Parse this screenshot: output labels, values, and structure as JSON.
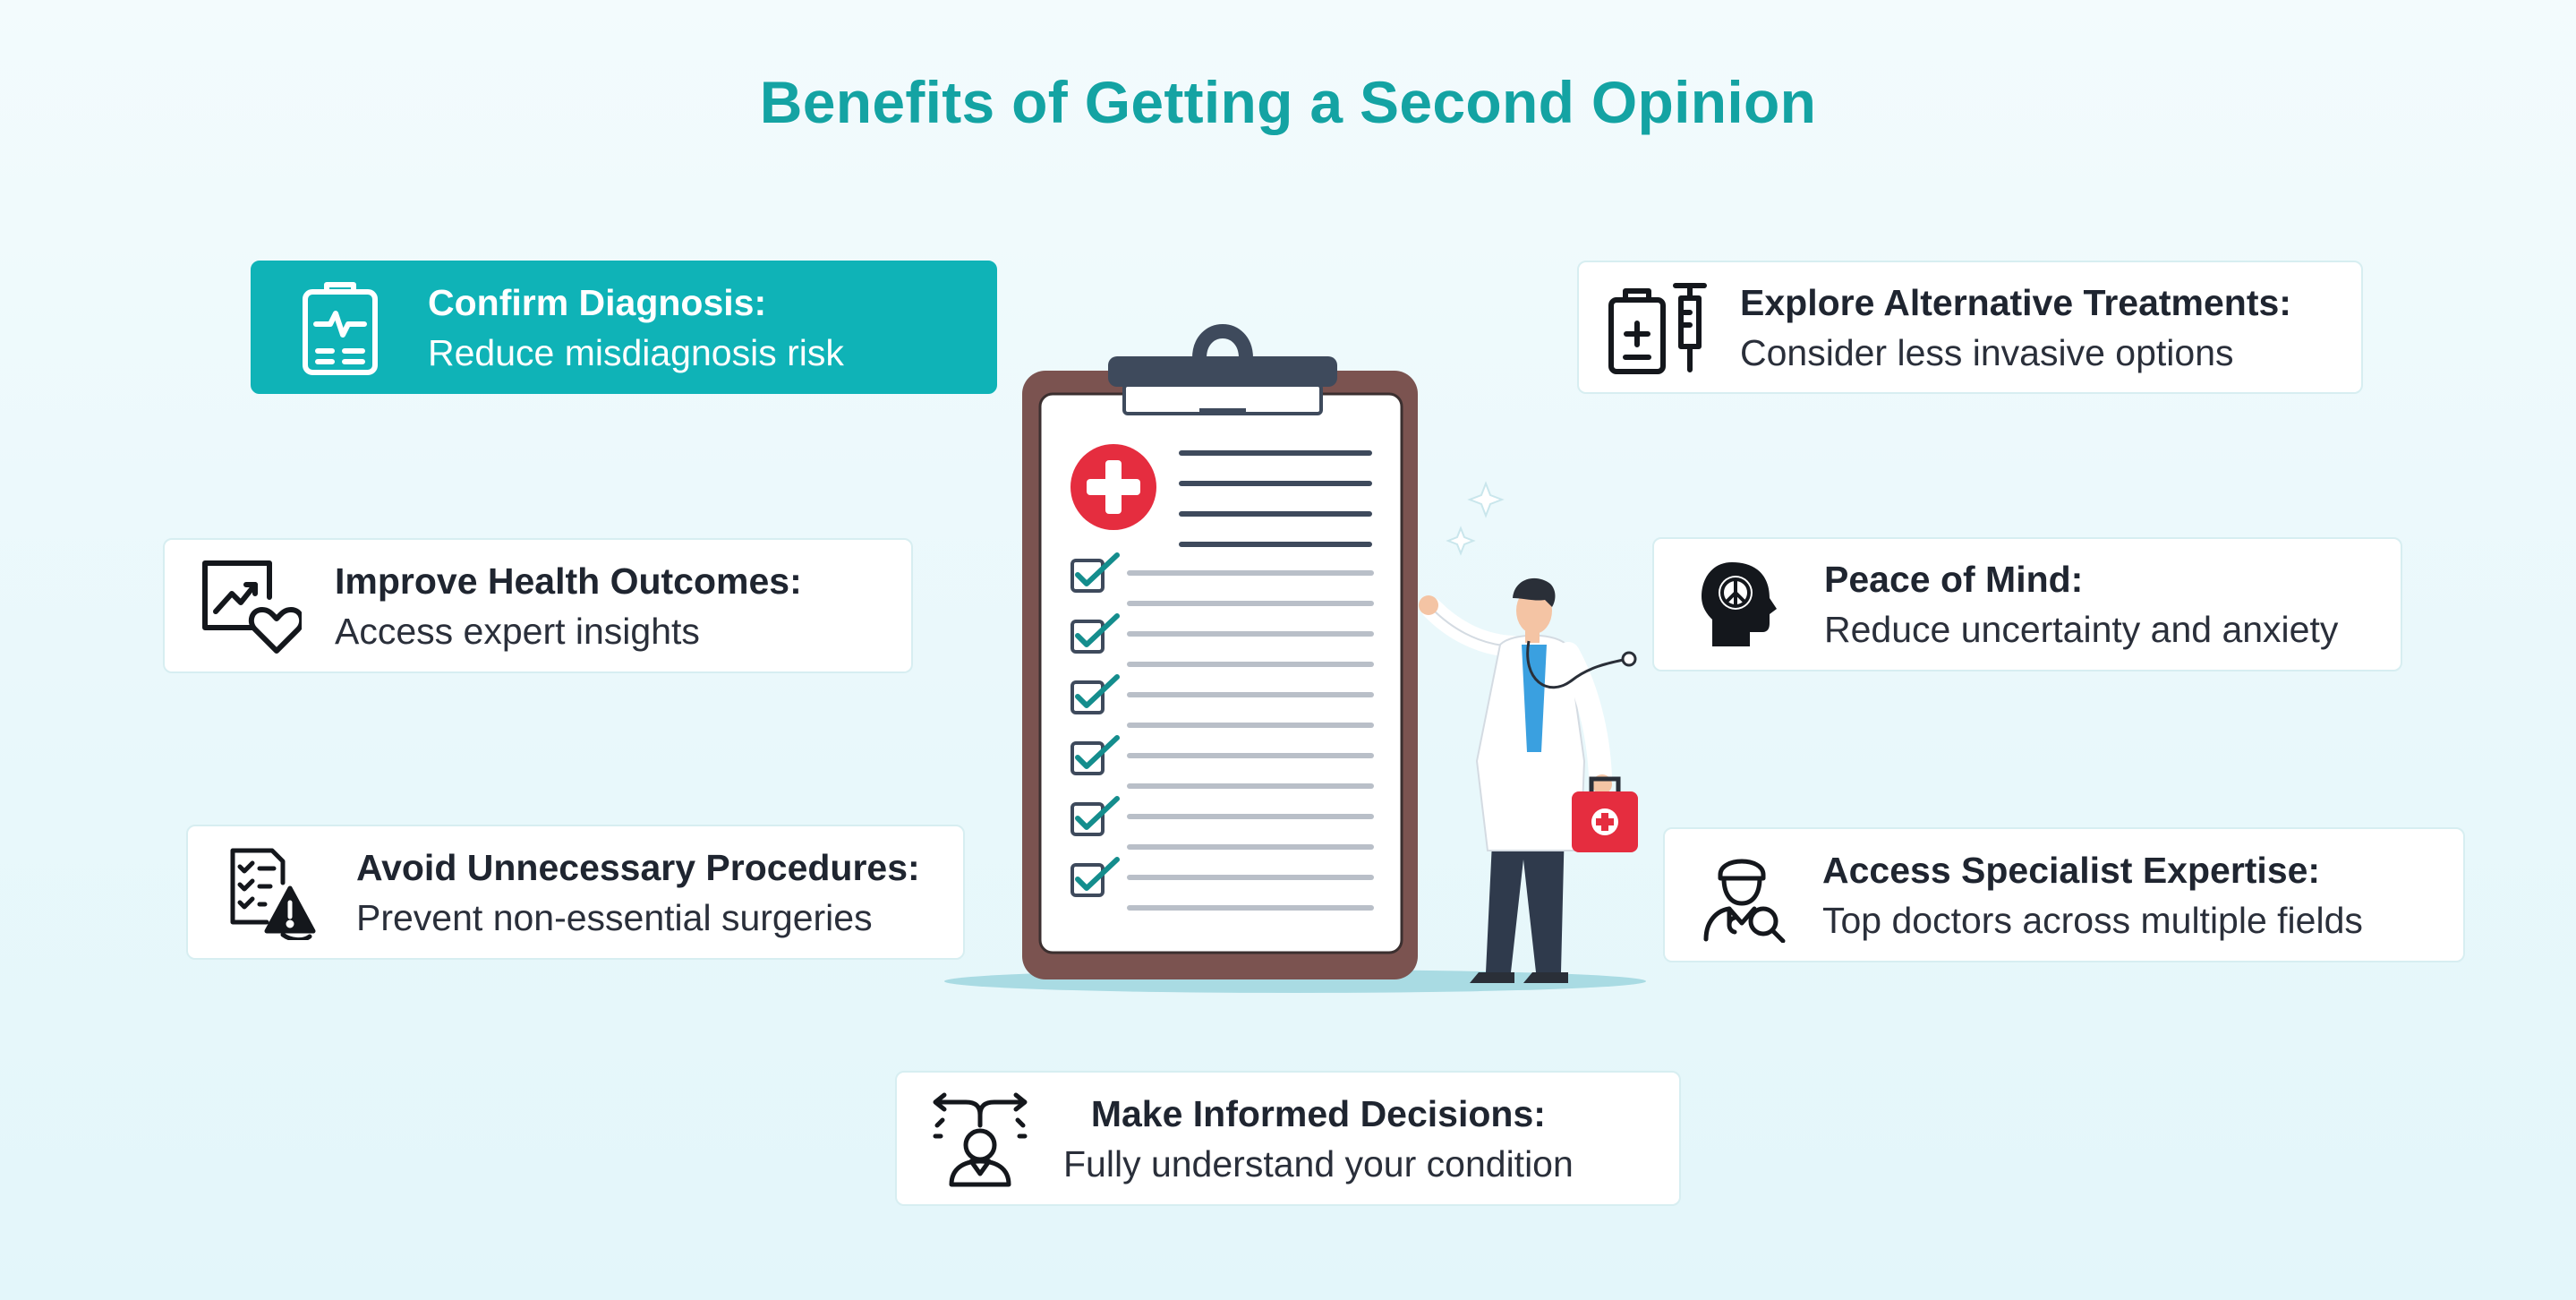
{
  "title": "Benefits of Getting a Second Opinion",
  "colors": {
    "accent": "#14a3a3",
    "active_card": "#0fb3b7",
    "clipboard": "#7b5350",
    "cross": "#e52d3f",
    "check": "#148d8d"
  },
  "cards": {
    "confirm": {
      "heading": "Confirm Diagnosis:",
      "text": "Reduce misdiagnosis risk",
      "icon": "clipboard-heartbeat-icon"
    },
    "explore": {
      "heading": "Explore Alternative Treatments:",
      "text": "Consider less invasive options",
      "icon": "medicine-syringe-icon"
    },
    "improve": {
      "heading": "Improve Health Outcomes:",
      "text": "Access expert insights",
      "icon": "chart-heart-icon"
    },
    "peace": {
      "heading": "Peace of Mind:",
      "text": "Reduce uncertainty and anxiety",
      "icon": "peace-head-icon"
    },
    "avoid": {
      "heading": "Avoid Unnecessary Procedures:",
      "text": "Prevent non-essential surgeries",
      "icon": "checklist-warning-icon"
    },
    "specialist": {
      "heading": "Access Specialist Expertise:",
      "text": "Top doctors across multiple fields",
      "icon": "doctor-search-icon"
    },
    "informed": {
      "heading": "Make Informed Decisions:",
      "text": "Fully understand your condition",
      "icon": "decision-arrows-icon"
    }
  }
}
